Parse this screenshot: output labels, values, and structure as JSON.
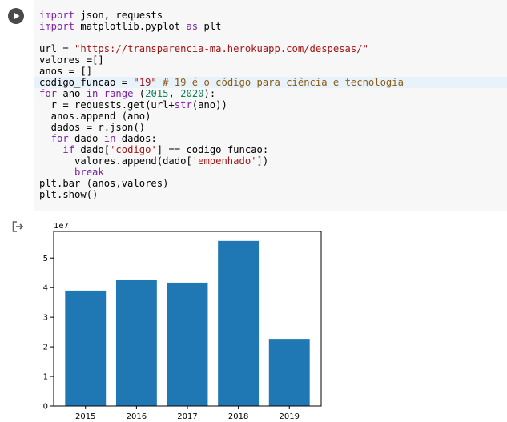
{
  "code_cell": {
    "lines": [
      [
        {
          "t": "import",
          "c": "kw"
        },
        {
          "t": " json, requests",
          "c": ""
        }
      ],
      [
        {
          "t": "import",
          "c": "kw"
        },
        {
          "t": " matplotlib.pyplot ",
          "c": ""
        },
        {
          "t": "as",
          "c": "kw"
        },
        {
          "t": " plt",
          "c": ""
        }
      ],
      [],
      [
        {
          "t": "url = ",
          "c": ""
        },
        {
          "t": "\"https://transparencia-ma.herokuapp.com/despesas/\"",
          "c": "str"
        }
      ],
      [
        {
          "t": "valores =[]",
          "c": ""
        }
      ],
      [
        {
          "t": "anos = []",
          "c": ""
        }
      ],
      [
        {
          "t": "codigo_funcao = ",
          "c": ""
        },
        {
          "t": "\"19\"",
          "c": "str"
        },
        {
          "t": " # 19 é o código para ciência e tecnologia",
          "c": "cm"
        }
      ],
      [
        {
          "t": "for",
          "c": "kw"
        },
        {
          "t": " ano ",
          "c": ""
        },
        {
          "t": "in",
          "c": "kw"
        },
        {
          "t": " ",
          "c": ""
        },
        {
          "t": "range",
          "c": "fn"
        },
        {
          "t": " (",
          "c": ""
        },
        {
          "t": "2015",
          "c": "num"
        },
        {
          "t": ", ",
          "c": ""
        },
        {
          "t": "2020",
          "c": "num"
        },
        {
          "t": "):",
          "c": ""
        }
      ],
      [
        {
          "t": "  r = requests.get(url+",
          "c": ""
        },
        {
          "t": "str",
          "c": "fn"
        },
        {
          "t": "(ano))",
          "c": ""
        }
      ],
      [
        {
          "t": "  anos.append (ano)",
          "c": ""
        }
      ],
      [
        {
          "t": "  dados = r.json()",
          "c": ""
        }
      ],
      [
        {
          "t": "  ",
          "c": ""
        },
        {
          "t": "for",
          "c": "kw"
        },
        {
          "t": " dado ",
          "c": ""
        },
        {
          "t": "in",
          "c": "kw"
        },
        {
          "t": " dados:",
          "c": ""
        }
      ],
      [
        {
          "t": "    ",
          "c": ""
        },
        {
          "t": "if",
          "c": "kw"
        },
        {
          "t": " dado[",
          "c": ""
        },
        {
          "t": "'codigo'",
          "c": "str"
        },
        {
          "t": "] == codigo_funcao:",
          "c": ""
        }
      ],
      [
        {
          "t": "      valores.append(dado[",
          "c": ""
        },
        {
          "t": "'empenhado'",
          "c": "str"
        },
        {
          "t": "])",
          "c": ""
        }
      ],
      [
        {
          "t": "      ",
          "c": ""
        },
        {
          "t": "break",
          "c": "kw"
        }
      ],
      [
        {
          "t": "plt.bar (anos,valores)",
          "c": ""
        }
      ],
      [
        {
          "t": "plt.show()",
          "c": ""
        }
      ]
    ],
    "current_line": 6
  },
  "icons": {
    "run": "play-icon",
    "output": "output-redirect-icon"
  },
  "colors": {
    "bar": "#1f77b4",
    "editor_bg": "#f7f7f7",
    "current_line_bg": "#e8f2fb"
  },
  "chart_data": {
    "type": "bar",
    "categories": [
      "2015",
      "2016",
      "2017",
      "2018",
      "2019"
    ],
    "values": [
      39000000,
      42500000,
      41700000,
      55800000,
      22700000
    ],
    "offset_label": "1e7",
    "yticks": [
      "0",
      "1",
      "2",
      "3",
      "4",
      "5"
    ],
    "ylim": [
      0,
      59000000
    ],
    "title": "",
    "xlabel": "",
    "ylabel": "",
    "grid": false
  }
}
